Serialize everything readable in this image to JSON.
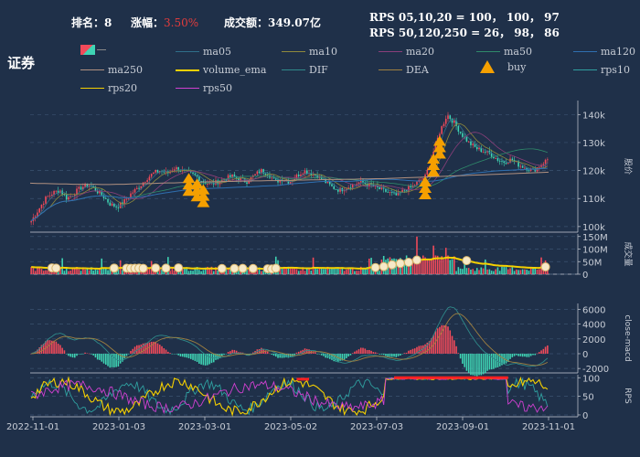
{
  "header": {
    "rank_label": "排名：",
    "rank_value": "8",
    "change_label": "涨幅：",
    "change_value": "3.50%",
    "turnover_label": "成交额：",
    "turnover_value": "349.07亿",
    "rps_line1": "RPS 05,10,20 = 100， 100， 97",
    "rps_line2": "RPS 50,120,250 = 26， 98， 86"
  },
  "sector": "证券",
  "legend": [
    {
      "label": "ma05",
      "color": "#2f6f8a"
    },
    {
      "label": "ma10",
      "color": "#8f8a3c"
    },
    {
      "label": "ma20",
      "color": "#8a3f7a"
    },
    {
      "label": "ma50",
      "color": "#2f8a6a"
    },
    {
      "label": "ma120",
      "color": "#2f6fb0"
    },
    {
      "label": "ma250",
      "color": "#b09080"
    },
    {
      "label": "volume_ema",
      "color": "#f5d000"
    },
    {
      "label": "DIF",
      "color": "#2f8a8a"
    },
    {
      "label": "DEA",
      "color": "#a08040"
    },
    {
      "label": "buy",
      "color": "#f5a000"
    },
    {
      "label": "rps10",
      "color": "#2fa0a0"
    },
    {
      "label": "rps20",
      "color": "#f5d000"
    },
    {
      "label": "rps50",
      "color": "#d040d0"
    }
  ],
  "colors": {
    "up": "#f24a5a",
    "down": "#3fd4b4",
    "grid": "#3b5270",
    "axis": "#c8cdd6"
  },
  "chart_data": [
    {
      "type": "candlestick",
      "name": "price",
      "ylabel": "股价",
      "ylim": [
        98000,
        145000
      ],
      "yticks": [
        100000,
        110000,
        120000,
        130000,
        140000
      ],
      "ytick_labels": [
        "100k",
        "110k",
        "120k",
        "130k",
        "140k"
      ],
      "xticks": [
        "2022-11-01",
        "2023-01-03",
        "2023-03-01",
        "2023-05-02",
        "2023-07-03",
        "2023-09-01",
        "2023-11-01"
      ],
      "close_series": [
        102000,
        106000,
        110000,
        112000,
        113000,
        110000,
        112000,
        114000,
        115000,
        113000,
        111000,
        108000,
        107000,
        109000,
        112000,
        114000,
        117000,
        119000,
        120000,
        119000,
        121000,
        120000,
        119000,
        118000,
        116000,
        115000,
        116000,
        117000,
        118000,
        117000,
        116000,
        118000,
        120000,
        119000,
        116000,
        117000,
        116000,
        118000,
        120000,
        119000,
        118000,
        116000,
        114000,
        113000,
        114000,
        115000,
        116000,
        115000,
        114000,
        113000,
        112000,
        111000,
        113000,
        114000,
        116000,
        118000,
        126000,
        134000,
        140000,
        137000,
        133000,
        130000,
        128000,
        127000,
        126000,
        124000,
        123000,
        124000,
        122000,
        121000,
        120000,
        122000,
        124000
      ],
      "ma250": [
        115500,
        115400,
        115400,
        115300,
        115200,
        115200,
        115100,
        115100,
        115100,
        115100,
        115000,
        115000,
        115100,
        115100,
        115200,
        115300,
        115300,
        115400,
        115500,
        115600,
        115600,
        115700,
        115800,
        115800,
        115900,
        116000,
        116000,
        116100,
        116100,
        116200,
        116200,
        116300,
        116300,
        116400,
        116400,
        116500,
        116500,
        116600,
        116600,
        116700,
        116700,
        116800,
        116800,
        116800,
        116900,
        116900,
        117000,
        117000,
        117100,
        117100,
        117200,
        117300,
        117400,
        117500,
        117600,
        117700,
        117800,
        117900,
        118000,
        118100,
        118200,
        118300,
        118400,
        118500,
        118600,
        118700,
        118800,
        118900,
        119000,
        119100,
        119200,
        119300,
        119400
      ],
      "buy_markers": [
        22,
        23,
        24,
        55,
        56,
        57
      ]
    },
    {
      "type": "bar",
      "name": "volume",
      "ylabel": "成交量",
      "ylim": [
        0,
        160
      ],
      "yticks": [
        0,
        50,
        100,
        150
      ],
      "ytick_labels": [
        "0",
        "50M",
        "100M",
        "150M"
      ]
    },
    {
      "type": "bar",
      "name": "macd",
      "ylabel": "close-macd",
      "ylim": [
        -2600,
        6800
      ],
      "yticks": [
        -2000,
        0,
        2000,
        4000,
        6000
      ],
      "ytick_labels": [
        "-2000",
        "0",
        "2000",
        "4000",
        "6000"
      ]
    },
    {
      "type": "line",
      "name": "rps",
      "ylabel": "RPS",
      "ylim": [
        -5,
        108
      ],
      "yticks": [
        0,
        50,
        100
      ],
      "ytick_labels": [
        "0",
        "50",
        "100"
      ]
    }
  ]
}
